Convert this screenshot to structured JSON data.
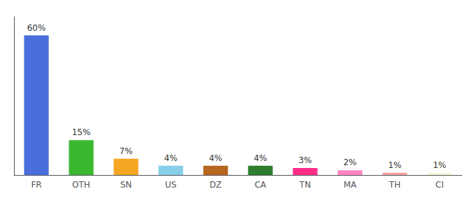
{
  "chart_data": {
    "type": "bar",
    "categories": [
      "FR",
      "OTH",
      "SN",
      "US",
      "DZ",
      "CA",
      "TN",
      "MA",
      "TH",
      "CI"
    ],
    "values": [
      60,
      15,
      7,
      4,
      4,
      4,
      3,
      2,
      1,
      1
    ],
    "value_labels": [
      "60%",
      "15%",
      "7%",
      "4%",
      "4%",
      "4%",
      "3%",
      "2%",
      "1%",
      "1%"
    ],
    "data_labels": true,
    "colors": [
      "#4a6fdc",
      "#3cb830",
      "#f5a623",
      "#87ceeb",
      "#b5651d",
      "#2d7d2d",
      "#ff2d8a",
      "#ff85c0",
      "#f4a0a0",
      "#f5f5dc"
    ],
    "ylim": [
      0,
      68
    ],
    "tick_labels": "x",
    "grid": false
  }
}
